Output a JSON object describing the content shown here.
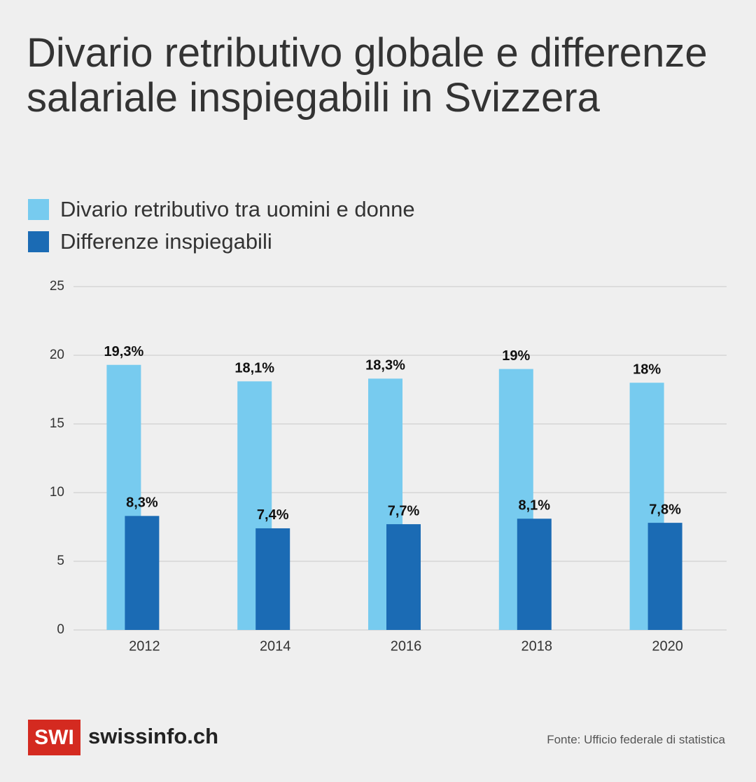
{
  "chart_data": {
    "type": "bar",
    "title": "Divario retributivo globale e differenze salariale inspiegabili in Svizzera",
    "categories": [
      "2012",
      "2014",
      "2016",
      "2018",
      "2020"
    ],
    "series": [
      {
        "name": "Divario retributivo tra uomini e donne",
        "color": "#77cbef",
        "values": [
          19.3,
          18.1,
          18.3,
          19,
          18
        ],
        "value_labels": [
          "19,3%",
          "18,1%",
          "18,3%",
          "19%",
          "18%"
        ]
      },
      {
        "name": "Differenze inspiegabili",
        "color": "#1b6bb4",
        "values": [
          8.3,
          7.4,
          7.7,
          8.1,
          7.8
        ],
        "value_labels": [
          "8,3%",
          "7,4%",
          "7,7%",
          "8,1%",
          "7,8%"
        ]
      }
    ],
    "ylim": [
      0,
      25
    ],
    "yticks": [
      0,
      5,
      10,
      15,
      20,
      25
    ],
    "grid": true,
    "source": "Fonte: Ufficio federale di statistica"
  },
  "footer": {
    "logo": "SWI",
    "site": "swissinfo.ch"
  }
}
